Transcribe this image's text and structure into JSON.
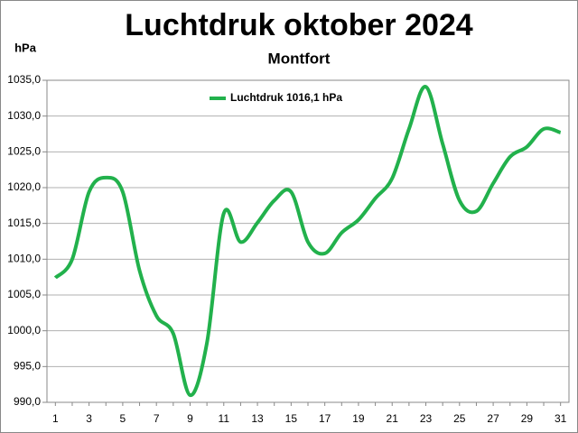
{
  "chart_data": {
    "type": "line",
    "title": "Luchtdruk oktober 2024",
    "subtitle": "Montfort",
    "y_label": "hPa",
    "categories": [
      "1",
      null,
      "3",
      null,
      "5",
      null,
      "7",
      null,
      "9",
      null,
      "11",
      null,
      "13",
      null,
      "15",
      null,
      "17",
      null,
      "19",
      null,
      "21",
      null,
      "23",
      null,
      "25",
      null,
      "27",
      null,
      "29",
      null,
      "31"
    ],
    "series": [
      {
        "name": "Luchtdruk 1016,1 hPa",
        "color": "#22b14c",
        "values": [
          1007.4,
          1010.0,
          1019.4,
          1021.4,
          1019.4,
          1008.4,
          1002.1,
          999.6,
          991.0,
          998.3,
          1016.4,
          1012.4,
          1015.1,
          1018.2,
          1019.4,
          1012.4,
          1010.8,
          1013.7,
          1015.5,
          1018.5,
          1021.3,
          1028.2,
          1034.1,
          1026.1,
          1018.2,
          1016.7,
          1020.6,
          1024.3,
          1025.7,
          1028.2,
          1027.7
        ]
      }
    ],
    "ylim": [
      990,
      1035
    ],
    "yticks": [
      {
        "value": 990,
        "label": "990,0"
      },
      {
        "value": 995,
        "label": "995,0"
      },
      {
        "value": 1000,
        "label": "1000,0"
      },
      {
        "value": 1005,
        "label": "1005,0"
      },
      {
        "value": 1010,
        "label": "1010,0"
      },
      {
        "value": 1015,
        "label": "1015,0"
      },
      {
        "value": 1020,
        "label": "1020,0"
      },
      {
        "value": 1025,
        "label": "1025,0"
      },
      {
        "value": 1030,
        "label": "1030,0"
      },
      {
        "value": 1035,
        "label": "1035,0"
      }
    ],
    "grid": true,
    "legend": "top"
  }
}
